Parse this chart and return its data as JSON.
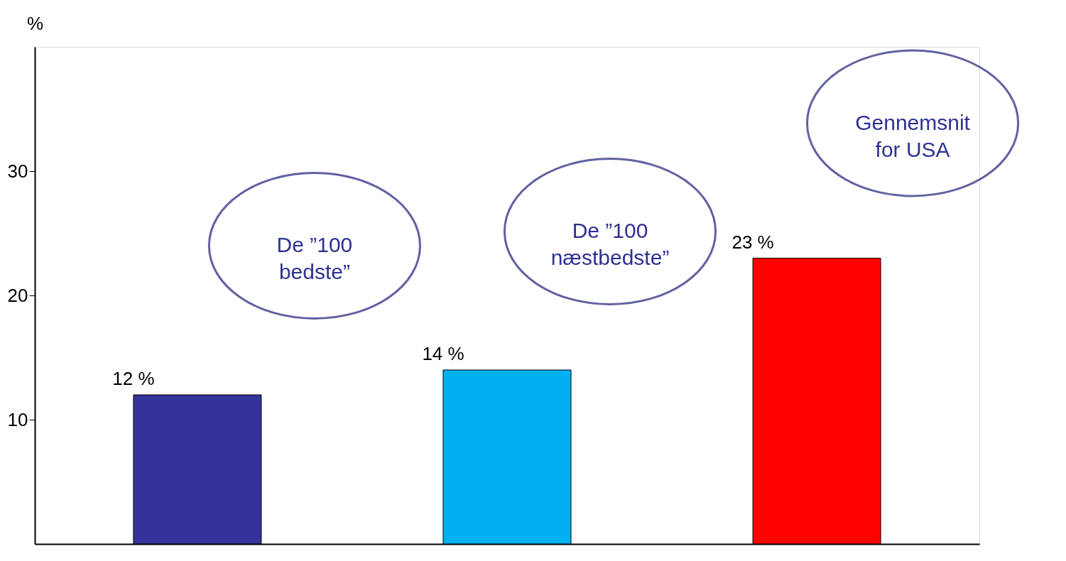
{
  "chart_data": {
    "type": "bar",
    "categories": [
      null,
      null,
      null
    ],
    "values": [
      12,
      14,
      23
    ],
    "colors": [
      "#333399",
      "#00b0f0",
      "#ff0000"
    ],
    "value_labels": [
      "12 %",
      "14 %",
      "23 %"
    ],
    "ylabel": "%",
    "ylim": [
      0,
      40
    ],
    "yticks": [
      10,
      20,
      30
    ],
    "grid": false,
    "annotations": [
      "De ”100\nbedste”",
      "De ”100\nnæstbedste”",
      "Gennemsnit\nfor USA"
    ]
  }
}
